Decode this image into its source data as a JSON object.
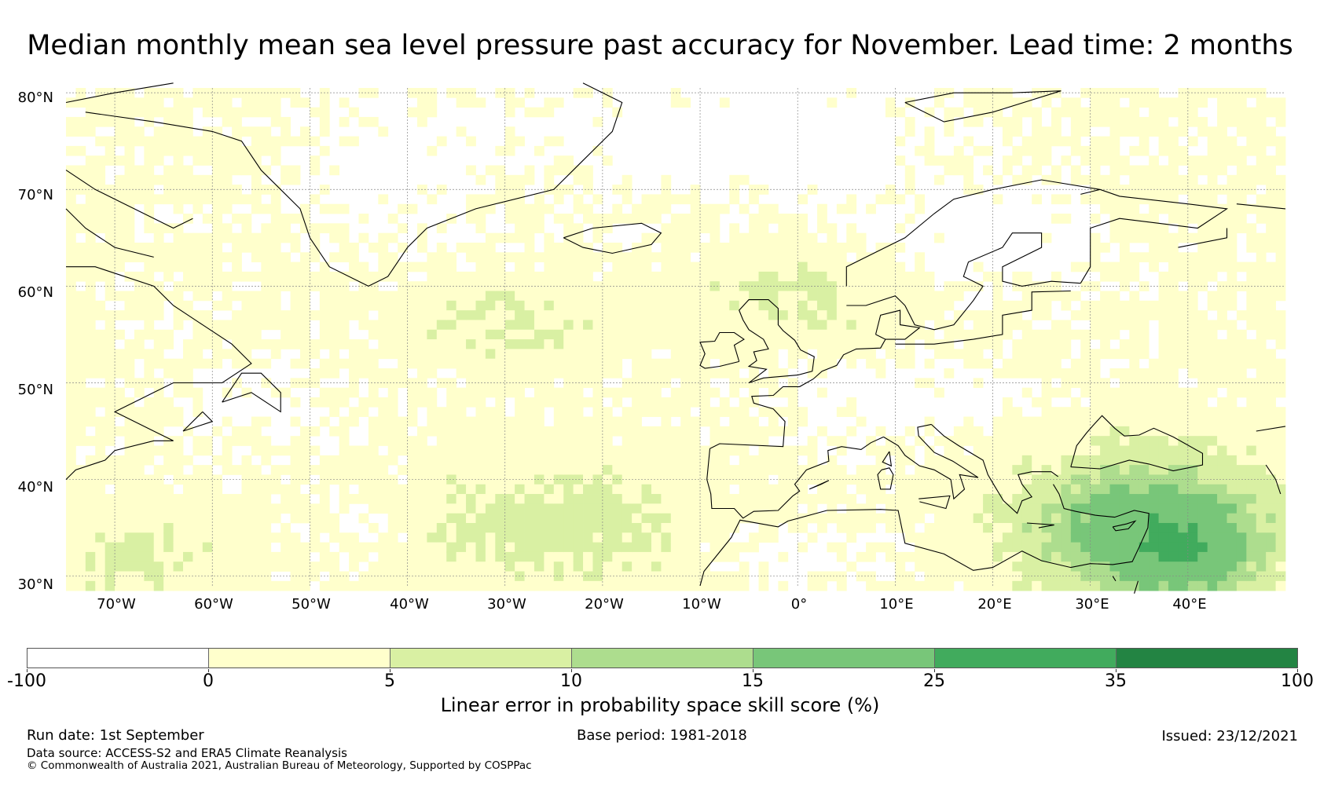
{
  "title": "Median monthly mean sea level pressure past accuracy for November. Lead time: 2 months",
  "map": {
    "projection": "plate carree",
    "region": "North Atlantic and Europe",
    "extent": {
      "lon": [
        -75,
        50
      ],
      "lat": [
        29,
        80.5
      ]
    },
    "lat_labels": [
      "80°N",
      "70°N",
      "60°N",
      "50°N",
      "40°N",
      "30°N"
    ],
    "lon_labels": [
      "70°W",
      "60°W",
      "50°W",
      "40°W",
      "30°W",
      "20°W",
      "10°W",
      "0°",
      "10°E",
      "20°E",
      "30°E",
      "40°E"
    ],
    "gridlines": true,
    "coastline_color": "#000000",
    "field": "Linear error in probability space skill score (%)"
  },
  "colorbar": {
    "title": "Linear error in probability space skill score (%)",
    "tick_labels": [
      "-100",
      "0",
      "5",
      "10",
      "15",
      "25",
      "35",
      "100"
    ],
    "colors": [
      "#ffffff",
      "#ffffcc",
      "#d9f0a3",
      "#addd8e",
      "#78c679",
      "#41ab5d",
      "#238443"
    ]
  },
  "footer": {
    "run_date": "Run date: 1st September",
    "base_period": "Base period: 1981-2018",
    "issued": "Issued: 23/12/2021",
    "data_source": "Data source: ACCESS-S2 and ERA5 Climate Reanalysis",
    "copyright": "© Commonwealth of Australia 2021, Australian Bureau of Meteorology, Supported by COSPPac"
  }
}
